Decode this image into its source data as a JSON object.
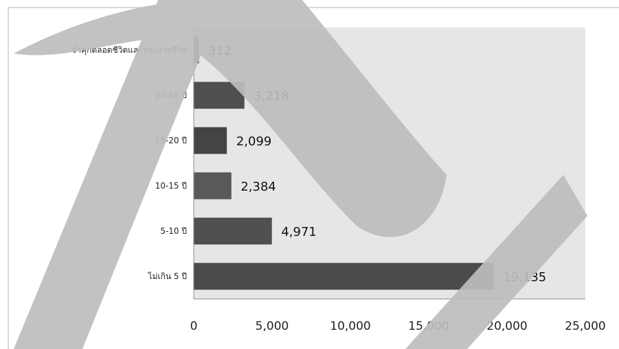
{
  "chart_data": {
    "type": "bar",
    "orientation": "horizontal",
    "categories": [
      "จำคุกตลอดชีวิตและประหารชีวิต",
      "20-50 ปี",
      "15-20 ปี",
      "10-15 ปี",
      "5-10 ปี",
      "ไม่เกิน 5 ปี"
    ],
    "values": [
      312,
      3218,
      2099,
      2384,
      4971,
      19135
    ],
    "data_labels": [
      "312",
      "3,218",
      "2,099",
      "2,384",
      "4,971",
      "19,135"
    ],
    "xlim": [
      0,
      25000
    ],
    "x_ticks": [
      0,
      5000,
      10000,
      15000,
      20000,
      25000
    ],
    "x_tick_labels": [
      "0",
      "5,000",
      "10,000",
      "15,000",
      "20,000",
      "25,000"
    ],
    "title": "",
    "xlabel": "",
    "ylabel": "",
    "grid": false,
    "legend": "none",
    "colors": {
      "plot_background": "#e6e6e6",
      "bars": [
        "#555555",
        "#4f4f4f",
        "#444444",
        "#595959",
        "#505050",
        "#4b4b4b"
      ],
      "bar_border": "#333333",
      "watermark": "#bdbdbd"
    }
  }
}
